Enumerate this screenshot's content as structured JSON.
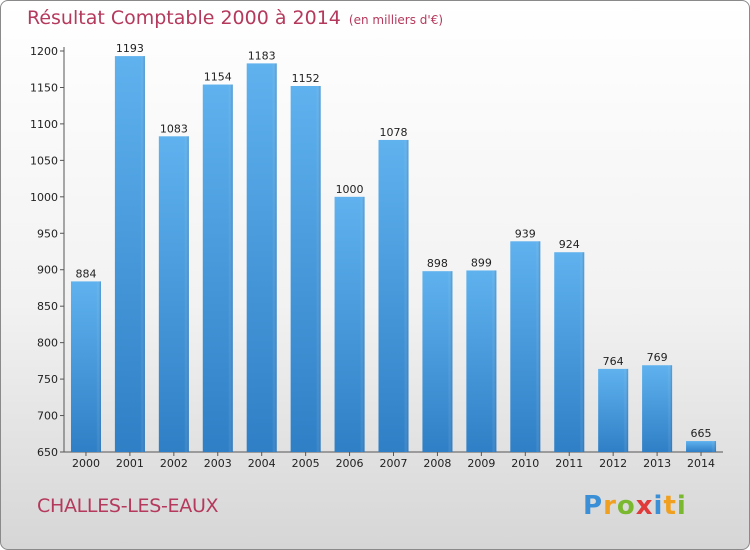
{
  "chart_data": {
    "type": "bar",
    "title": "Résultat Comptable 2000 à 2014",
    "subtitle": "(en milliers d'€)",
    "categories": [
      "2000",
      "2001",
      "2002",
      "2003",
      "2004",
      "2005",
      "2006",
      "2007",
      "2008",
      "2009",
      "2010",
      "2011",
      "2012",
      "2013",
      "2014"
    ],
    "values": [
      884,
      1193,
      1083,
      1154,
      1183,
      1152,
      1000,
      1078,
      898,
      899,
      939,
      924,
      764,
      769,
      665
    ],
    "ylim": [
      650,
      1200
    ],
    "yticks": [
      650,
      700,
      750,
      800,
      850,
      900,
      950,
      1000,
      1050,
      1100,
      1150,
      1200
    ],
    "xlabel": "",
    "ylabel": "",
    "grid": false,
    "bar_color": "#4aa0e0"
  },
  "footer": {
    "city": "CHALLES-LES-EAUX",
    "logo_letters": [
      "P",
      "r",
      "o",
      "x",
      "i",
      "t",
      "i"
    ],
    "logo_colors": [
      "#3a8fd6",
      "#f0a020",
      "#7ab830",
      "#e03a3a",
      "#3a8fd6",
      "#f0a020",
      "#7ab830"
    ]
  }
}
